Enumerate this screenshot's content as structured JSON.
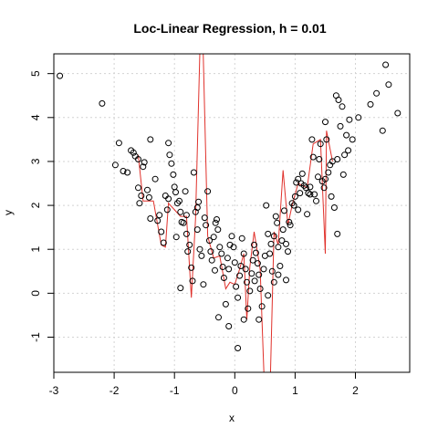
{
  "chart_data": {
    "type": "scatter",
    "title": "Loc-Linear Regression, h = 0.01",
    "xlabel": "x",
    "ylabel": "y",
    "xlim": [
      -3.0,
      2.9
    ],
    "ylim": [
      -1.8,
      5.45
    ],
    "x_ticks": [
      -3,
      -2,
      -1,
      0,
      1,
      2
    ],
    "y_ticks": [
      -1,
      0,
      1,
      2,
      3,
      4,
      5
    ],
    "grid": true,
    "colors": {
      "points": "#000000",
      "fit": "#e0312b",
      "grid": "#d3d3d3"
    },
    "points": [
      [
        -2.9,
        4.95
      ],
      [
        -2.2,
        4.32
      ],
      [
        -1.98,
        2.92
      ],
      [
        -1.92,
        3.42
      ],
      [
        -1.85,
        2.78
      ],
      [
        -1.78,
        2.75
      ],
      [
        -1.72,
        3.25
      ],
      [
        -1.68,
        3.2
      ],
      [
        -1.65,
        3.12
      ],
      [
        -1.6,
        2.4
      ],
      [
        -1.58,
        2.05
      ],
      [
        -1.55,
        2.22
      ],
      [
        -1.52,
        2.88
      ],
      [
        -1.5,
        2.98
      ],
      [
        -1.45,
        2.35
      ],
      [
        -1.42,
        2.18
      ],
      [
        -1.4,
        3.5
      ],
      [
        -1.32,
        2.6
      ],
      [
        -1.28,
        1.65
      ],
      [
        -1.25,
        1.78
      ],
      [
        -1.22,
        1.4
      ],
      [
        -1.18,
        1.15
      ],
      [
        -1.15,
        2.22
      ],
      [
        -1.12,
        1.9
      ],
      [
        -1.1,
        3.42
      ],
      [
        -1.08,
        3.15
      ],
      [
        -1.05,
        2.95
      ],
      [
        -1.02,
        2.7
      ],
      [
        -1.0,
        2.42
      ],
      [
        -0.98,
        2.3
      ],
      [
        -0.95,
        2.05
      ],
      [
        -0.92,
        2.1
      ],
      [
        -0.9,
        1.85
      ],
      [
        -0.88,
        1.62
      ],
      [
        -0.85,
        1.6
      ],
      [
        -0.82,
        2.32
      ],
      [
        -0.8,
        1.78
      ],
      [
        -0.78,
        0.95
      ],
      [
        -0.75,
        1.1
      ],
      [
        -0.72,
        0.58
      ],
      [
        -0.7,
        0.28
      ],
      [
        -0.68,
        2.75
      ],
      [
        -0.65,
        1.85
      ],
      [
        -0.62,
        1.95
      ],
      [
        -0.6,
        2.08
      ],
      [
        -0.58,
        1.0
      ],
      [
        -0.55,
        0.85
      ],
      [
        -0.52,
        0.2
      ],
      [
        -0.5,
        1.72
      ],
      [
        -0.48,
        1.55
      ],
      [
        -0.45,
        2.32
      ],
      [
        -0.42,
        1.2
      ],
      [
        -0.4,
        0.95
      ],
      [
        -0.38,
        0.75
      ],
      [
        -0.35,
        1.28
      ],
      [
        -0.32,
        1.6
      ],
      [
        -0.3,
        1.68
      ],
      [
        -0.28,
        1.45
      ],
      [
        -0.25,
        1.05
      ],
      [
        -0.22,
        0.9
      ],
      [
        -0.2,
        0.6
      ],
      [
        -0.18,
        0.35
      ],
      [
        -0.15,
        -0.25
      ],
      [
        -0.12,
        0.8
      ],
      [
        -0.1,
        0.55
      ],
      [
        -0.08,
        1.1
      ],
      [
        -0.05,
        1.3
      ],
      [
        -0.02,
        1.05
      ],
      [
        0.0,
        0.7
      ],
      [
        0.02,
        0.15
      ],
      [
        0.05,
        -0.1
      ],
      [
        0.08,
        0.4
      ],
      [
        0.1,
        0.62
      ],
      [
        0.12,
        1.25
      ],
      [
        0.15,
        0.9
      ],
      [
        0.18,
        0.55
      ],
      [
        0.2,
        0.25
      ],
      [
        0.22,
        -0.35
      ],
      [
        0.25,
        0.05
      ],
      [
        0.28,
        0.45
      ],
      [
        0.3,
        0.75
      ],
      [
        0.32,
        1.1
      ],
      [
        0.35,
        0.92
      ],
      [
        0.38,
        0.68
      ],
      [
        0.4,
        0.42
      ],
      [
        0.42,
        0.1
      ],
      [
        0.45,
        -0.3
      ],
      [
        0.48,
        0.55
      ],
      [
        0.5,
        0.85
      ],
      [
        0.52,
        2.0
      ],
      [
        0.55,
        1.35
      ],
      [
        0.58,
        0.9
      ],
      [
        0.6,
        1.12
      ],
      [
        0.62,
        0.5
      ],
      [
        0.65,
        1.3
      ],
      [
        0.68,
        1.75
      ],
      [
        0.7,
        1.6
      ],
      [
        0.72,
        1.05
      ],
      [
        0.75,
        0.62
      ],
      [
        0.78,
        1.2
      ],
      [
        0.8,
        1.45
      ],
      [
        0.82,
        1.88
      ],
      [
        0.85,
        1.12
      ],
      [
        0.88,
        0.95
      ],
      [
        0.9,
        1.62
      ],
      [
        0.92,
        1.55
      ],
      [
        0.95,
        2.05
      ],
      [
        0.98,
        2.0
      ],
      [
        1.0,
        2.2
      ],
      [
        1.02,
        2.52
      ],
      [
        1.05,
        2.6
      ],
      [
        1.08,
        2.28
      ],
      [
        1.1,
        2.5
      ],
      [
        1.12,
        2.72
      ],
      [
        1.15,
        2.45
      ],
      [
        1.18,
        2.4
      ],
      [
        1.2,
        1.8
      ],
      [
        1.22,
        2.28
      ],
      [
        1.25,
        2.42
      ],
      [
        1.28,
        3.5
      ],
      [
        1.3,
        3.1
      ],
      [
        1.32,
        2.25
      ],
      [
        1.35,
        2.1
      ],
      [
        1.38,
        2.65
      ],
      [
        1.4,
        3.05
      ],
      [
        1.42,
        3.4
      ],
      [
        1.45,
        2.55
      ],
      [
        1.48,
        2.4
      ],
      [
        1.5,
        3.9
      ],
      [
        1.52,
        3.5
      ],
      [
        1.55,
        2.75
      ],
      [
        1.58,
        2.92
      ],
      [
        1.6,
        2.2
      ],
      [
        1.62,
        3.0
      ],
      [
        1.65,
        1.95
      ],
      [
        1.68,
        4.5
      ],
      [
        1.7,
        3.05
      ],
      [
        1.72,
        4.4
      ],
      [
        1.75,
        3.8
      ],
      [
        1.78,
        4.25
      ],
      [
        1.8,
        2.7
      ],
      [
        1.82,
        3.15
      ],
      [
        1.85,
        3.6
      ],
      [
        1.88,
        3.25
      ],
      [
        1.9,
        3.95
      ],
      [
        1.95,
        3.5
      ],
      [
        2.05,
        4.0
      ],
      [
        2.25,
        4.3
      ],
      [
        2.35,
        4.55
      ],
      [
        2.45,
        3.7
      ],
      [
        2.5,
        5.2
      ],
      [
        2.55,
        4.75
      ],
      [
        2.7,
        4.1
      ],
      [
        -1.6,
        3.05
      ],
      [
        -1.1,
        2.15
      ],
      [
        -0.97,
        1.28
      ],
      [
        -0.9,
        0.12
      ],
      [
        -0.62,
        1.45
      ],
      [
        -0.33,
        0.52
      ],
      [
        -0.27,
        -0.55
      ],
      [
        -0.1,
        -0.75
      ],
      [
        0.05,
        -1.25
      ],
      [
        0.15,
        -0.6
      ],
      [
        0.33,
        0.28
      ],
      [
        0.4,
        -0.6
      ],
      [
        0.55,
        -0.05
      ],
      [
        0.65,
        0.25
      ],
      [
        0.72,
        0.42
      ],
      [
        0.85,
        0.3
      ],
      [
        1.05,
        1.9
      ],
      [
        1.25,
        2.25
      ],
      [
        1.5,
        2.6
      ],
      [
        1.7,
        1.35
      ],
      [
        -1.4,
        1.7
      ],
      [
        -0.8,
        1.35
      ]
    ],
    "fit": [
      [
        -1.6,
        3.15
      ],
      [
        -1.52,
        2.1
      ],
      [
        -1.45,
        2.1
      ],
      [
        -1.35,
        2.1
      ],
      [
        -1.22,
        1.1
      ],
      [
        -1.15,
        1.05
      ],
      [
        -1.1,
        2.05
      ],
      [
        -1.0,
        1.9
      ],
      [
        -0.9,
        1.75
      ],
      [
        -0.8,
        1.75
      ],
      [
        -0.72,
        -0.1
      ],
      [
        -0.65,
        1.7
      ],
      [
        -0.55,
        7.0
      ],
      [
        -0.45,
        1.3
      ],
      [
        -0.35,
        0.8
      ],
      [
        -0.25,
        0.85
      ],
      [
        -0.15,
        0.1
      ],
      [
        -0.08,
        0.25
      ],
      [
        0.0,
        0.2
      ],
      [
        0.08,
        0.55
      ],
      [
        0.15,
        0.9
      ],
      [
        0.2,
        -0.6
      ],
      [
        0.25,
        0.6
      ],
      [
        0.32,
        1.4
      ],
      [
        0.42,
        0.55
      ],
      [
        0.5,
        -2.5
      ],
      [
        0.58,
        -2.5
      ],
      [
        0.65,
        1.4
      ],
      [
        0.72,
        1.1
      ],
      [
        0.8,
        2.8
      ],
      [
        0.88,
        1.55
      ],
      [
        0.95,
        2.0
      ],
      [
        1.05,
        2.5
      ],
      [
        1.2,
        2.4
      ],
      [
        1.3,
        3.4
      ],
      [
        1.42,
        3.5
      ],
      [
        1.5,
        0.9
      ],
      [
        1.52,
        3.7
      ],
      [
        1.62,
        3.0
      ]
    ]
  }
}
